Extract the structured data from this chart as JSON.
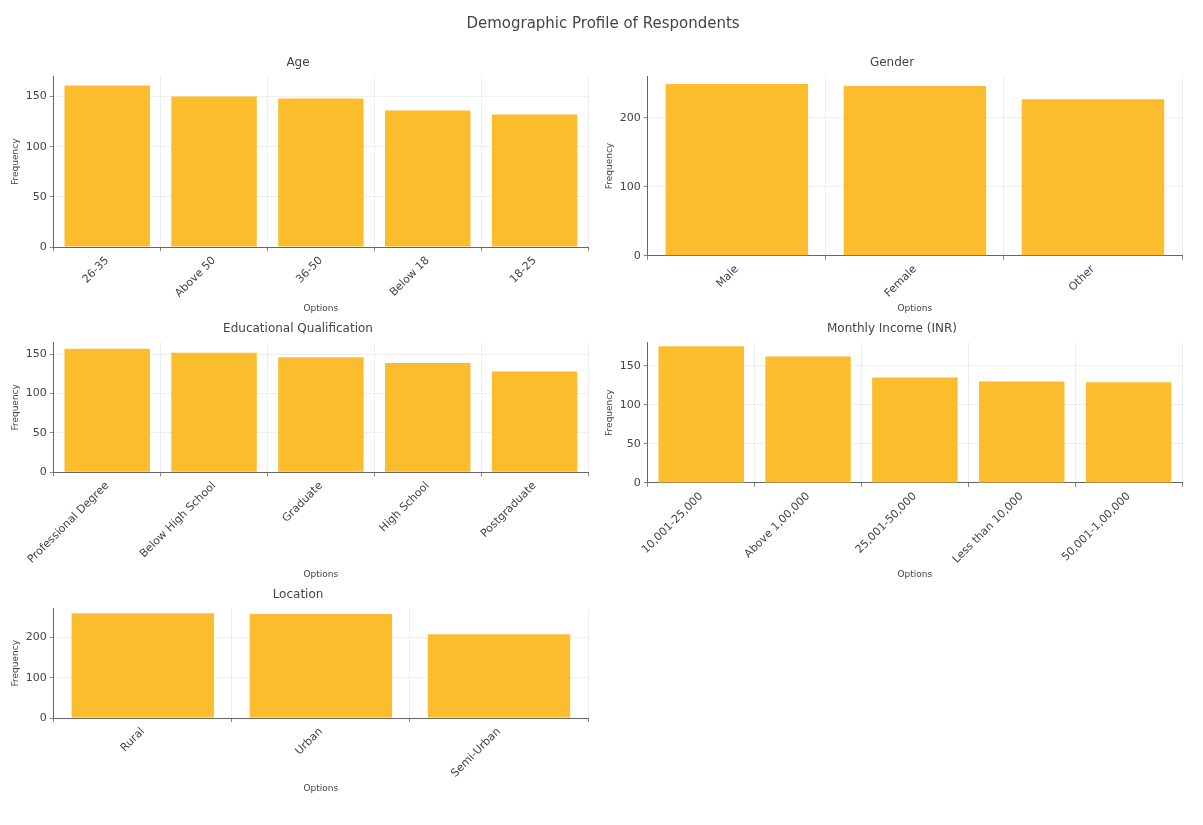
{
  "chart_data": [
    {
      "type": "other",
      "title": "Demographic Profile of Respondents"
    },
    {
      "type": "bar",
      "title": "Age",
      "xlabel": "Options",
      "ylabel": "Frequency",
      "categories": [
        "26-35",
        "Above 50",
        "36-50",
        "Below 18",
        "18-25"
      ],
      "values": [
        161,
        150,
        148,
        136,
        132
      ],
      "color": "#fbbc2e",
      "ylim": [
        0,
        170
      ],
      "yticks": [
        0,
        50,
        100,
        150
      ],
      "grid": true
    },
    {
      "type": "bar",
      "title": "Gender",
      "xlabel": "Options",
      "ylabel": "Frequency",
      "categories": [
        "Male",
        "Female",
        "Other"
      ],
      "values": [
        249,
        246,
        227
      ],
      "color": "#fbbc2e",
      "ylim": [
        0,
        260
      ],
      "yticks": [
        0,
        100,
        200
      ],
      "grid": true
    },
    {
      "type": "bar",
      "title": "Educational Qualification",
      "xlabel": "Options",
      "ylabel": "Frequency",
      "categories": [
        "Professional Degree",
        "Below High School",
        "Graduate",
        "High School",
        "Postgraduate"
      ],
      "values": [
        157,
        152,
        146,
        139,
        128
      ],
      "color": "#fbbc2e",
      "ylim": [
        0,
        165
      ],
      "yticks": [
        0,
        50,
        100,
        150
      ],
      "grid": true
    },
    {
      "type": "bar",
      "title": "Monthly Income (INR)",
      "xlabel": "Options",
      "ylabel": "Frequency",
      "categories": [
        "10,001-25,000",
        "Above 1,00,000",
        "25,001-50,000",
        "Less than 10,000",
        "50,001-1,00,000"
      ],
      "values": [
        175,
        162,
        135,
        130,
        129
      ],
      "color": "#fbbc2e",
      "ylim": [
        0,
        180
      ],
      "yticks": [
        0,
        50,
        100,
        150
      ],
      "grid": true
    },
    {
      "type": "bar",
      "title": "Location",
      "xlabel": "Options",
      "ylabel": "Frequency",
      "categories": [
        "Rural",
        "Urban",
        "Semi-Urban"
      ],
      "values": [
        260,
        258,
        208
      ],
      "color": "#fbbc2e",
      "ylim": [
        0,
        272
      ],
      "yticks": [
        0,
        100,
        200
      ],
      "grid": true
    }
  ]
}
